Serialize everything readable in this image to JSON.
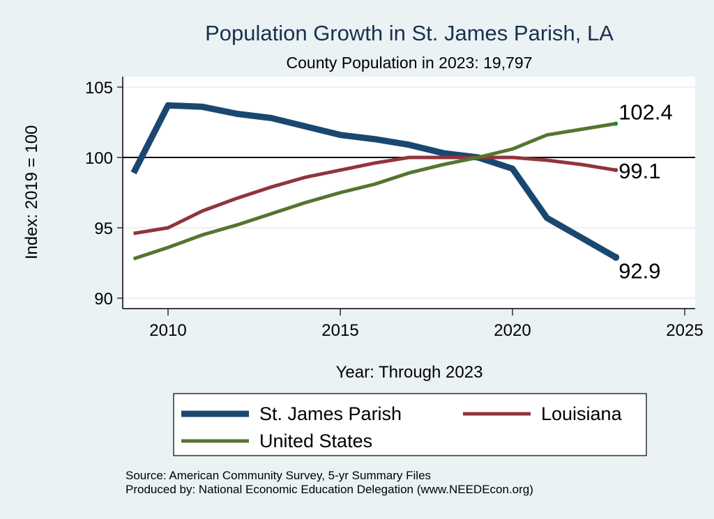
{
  "chart_data": {
    "type": "line",
    "title": "Population Growth in St. James Parish, LA",
    "subtitle": "County Population in 2023: 19,797",
    "xlabel": "Year: Through 2023",
    "ylabel": "Index: 2019 = 100",
    "xlim": [
      2008.3,
      2025.3
    ],
    "ylim": [
      89.2,
      105.8
    ],
    "xticks": [
      2010,
      2015,
      2020,
      2025
    ],
    "yticks": [
      90,
      95,
      100,
      105
    ],
    "reference_line": 100,
    "grid": true,
    "legend_position": "bottom",
    "x": [
      2009,
      2010,
      2011,
      2012,
      2013,
      2014,
      2015,
      2016,
      2017,
      2018,
      2019,
      2020,
      2021,
      2022,
      2023
    ],
    "series": [
      {
        "name": "St. James Parish",
        "color": "#1a476f",
        "width": 9,
        "values": [
          98.9,
          103.7,
          103.6,
          103.1,
          102.8,
          102.2,
          101.6,
          101.3,
          100.9,
          100.3,
          100.0,
          99.2,
          95.7,
          94.3,
          92.9
        ],
        "end_label": "92.9"
      },
      {
        "name": "Louisiana",
        "color": "#90353b",
        "width": 5,
        "values": [
          94.6,
          95.0,
          96.2,
          97.1,
          97.9,
          98.6,
          99.1,
          99.6,
          100.0,
          100.0,
          100.0,
          100.0,
          99.8,
          99.5,
          99.1
        ],
        "end_label": "99.1"
      },
      {
        "name": "United States",
        "color": "#55752f",
        "width": 5,
        "values": [
          92.8,
          93.6,
          94.5,
          95.2,
          96.0,
          96.8,
          97.5,
          98.1,
          98.9,
          99.5,
          100.0,
          100.6,
          101.6,
          102.0,
          102.4
        ],
        "end_label": "102.4"
      }
    ]
  },
  "footer": {
    "source": "Source: American Community Survey, 5-yr Summary Files",
    "produced": "Produced by: National Economic Education Delegation (www.NEEDEcon.org)"
  },
  "colors": {
    "background": "#eaf2f3",
    "plot_background": "#ffffff"
  }
}
